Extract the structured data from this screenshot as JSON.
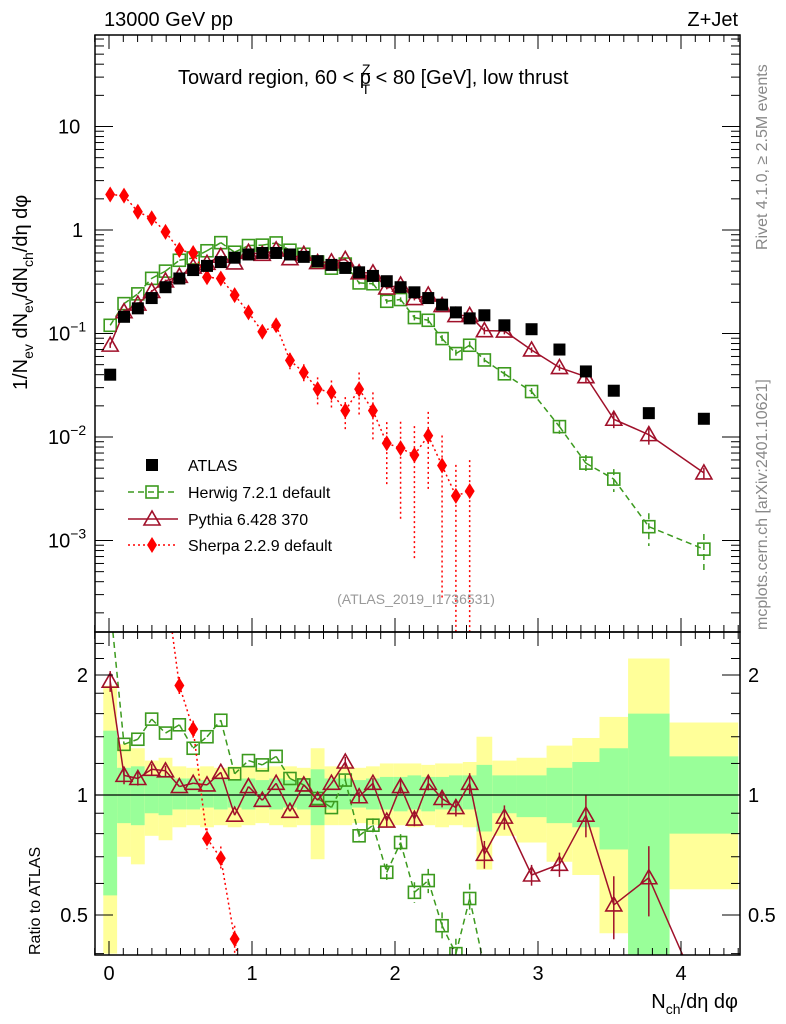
{
  "header": {
    "left": "13000 GeV pp",
    "right": "Z+Jet"
  },
  "title": {
    "pre": "Toward region, 60 < p",
    "sup": "Z",
    "sub": "T",
    "post": " < 80 [GeV], low thrust"
  },
  "ylabel": {
    "p1": "1/N",
    "s1": "ev",
    "p2": " dN",
    "s2": "ev",
    "p3": "/dN",
    "s3": "ch",
    "p4": "/dη dφ"
  },
  "xlabel": {
    "p1": "N",
    "s1": "ch",
    "p2": "/dη dφ"
  },
  "ratio_ylabel": "Ratio to ATLAS",
  "side_text": {
    "rivet": "Rivet 4.1.0, ≥ 2.5M events",
    "mcplots": "mcplots.cern.ch [arXiv:2401.10621]"
  },
  "analysis_ref": "(ATLAS_2019_I1736531)",
  "legend": [
    {
      "label": "ATLAS"
    },
    {
      "label": "Herwig 7.2.1 default"
    },
    {
      "label": "Pythia 6.428 370"
    },
    {
      "label": "Sherpa 2.2.9 default"
    }
  ],
  "colors": {
    "atlas": "#000000",
    "herwig": "#3c9a1e",
    "pythia": "#a0102a",
    "sherpa": "#ff0000",
    "band_total": "#ffff99",
    "band_stat": "#99ff99"
  },
  "x_ticks": [
    "0",
    "1",
    "2",
    "3",
    "4"
  ],
  "y_ticks_main": [
    {
      "value": 10,
      "base": "10",
      "exp": ""
    },
    {
      "value": 1,
      "base": "1",
      "exp": ""
    },
    {
      "value": 0.1,
      "base": "10",
      "exp": "−1"
    },
    {
      "value": 0.01,
      "base": "10",
      "exp": "−2"
    },
    {
      "value": 0.001,
      "base": "10",
      "exp": "−3"
    }
  ],
  "y_ticks_ratio": [
    {
      "value": 2,
      "label": "2"
    },
    {
      "value": 1,
      "label": "1"
    },
    {
      "value": 0.5,
      "label": "0.5"
    }
  ],
  "chart_data": {
    "type": "scatter",
    "log_y": true,
    "xlim": [
      -0.1,
      4.4
    ],
    "ylim": [
      0.000135,
      76
    ],
    "ratio_ylim": [
      0.4,
      2.56
    ],
    "bin_edges": [
      -0.04,
      0.0567,
      0.1534,
      0.2501,
      0.3468,
      0.4435,
      0.5402,
      0.6369,
      0.7336,
      0.8303,
      0.927,
      1.0237,
      1.1204,
      1.2171,
      1.3138,
      1.4105,
      1.5072,
      1.6039,
      1.7006,
      1.7973,
      1.894,
      1.9907,
      2.0874,
      2.1841,
      2.2808,
      2.3775,
      2.4742,
      2.57,
      2.68,
      2.85,
      3.06,
      3.24,
      3.43,
      3.63,
      3.92,
      4.4
    ],
    "atlas": {
      "name": "ATLAS",
      "values": [
        0.04,
        0.145,
        0.175,
        0.22,
        0.28,
        0.34,
        0.41,
        0.45,
        0.49,
        0.54,
        0.58,
        0.6,
        0.6,
        0.58,
        0.55,
        0.5,
        0.46,
        0.43,
        0.39,
        0.36,
        0.32,
        0.28,
        0.25,
        0.22,
        0.19,
        0.16,
        0.14,
        0.15,
        0.12,
        0.11,
        0.07,
        0.043,
        0.028,
        0.017,
        0.015
      ],
      "stat_band": [
        [
          0.56,
          1.45
        ],
        [
          0.85,
          1.17
        ],
        [
          0.84,
          1.18
        ],
        [
          0.9,
          1.12
        ],
        [
          0.89,
          1.12
        ],
        [
          0.92,
          1.1
        ],
        [
          0.92,
          1.1
        ],
        [
          0.93,
          1.09
        ],
        [
          0.92,
          1.1
        ],
        [
          0.93,
          1.09
        ],
        [
          0.92,
          1.1
        ],
        [
          0.93,
          1.09
        ],
        [
          0.92,
          1.1
        ],
        [
          0.93,
          1.09
        ],
        [
          0.92,
          1.1
        ],
        [
          0.84,
          1.16
        ],
        [
          0.92,
          1.1
        ],
        [
          0.92,
          1.1
        ],
        [
          0.93,
          1.09
        ],
        [
          0.92,
          1.1
        ],
        [
          0.92,
          1.11
        ],
        [
          0.91,
          1.11
        ],
        [
          0.92,
          1.12
        ],
        [
          0.91,
          1.11
        ],
        [
          0.92,
          1.11
        ],
        [
          0.91,
          1.12
        ],
        [
          0.92,
          1.12
        ],
        [
          0.81,
          1.19
        ],
        [
          0.9,
          1.12
        ],
        [
          0.88,
          1.12
        ],
        [
          0.85,
          1.17
        ],
        [
          0.83,
          1.21
        ],
        [
          0.73,
          1.31
        ],
        [
          0.38,
          1.6
        ],
        [
          0.8,
          1.25
        ]
      ],
      "total_band": [
        [
          0.4,
          1.88
        ],
        [
          0.7,
          1.34
        ],
        [
          0.67,
          1.31
        ],
        [
          0.79,
          1.22
        ],
        [
          0.77,
          1.24
        ],
        [
          0.83,
          1.18
        ],
        [
          0.84,
          1.17
        ],
        [
          0.83,
          1.18
        ],
        [
          0.84,
          1.17
        ],
        [
          0.83,
          1.18
        ],
        [
          0.84,
          1.18
        ],
        [
          0.85,
          1.17
        ],
        [
          0.84,
          1.18
        ],
        [
          0.83,
          1.18
        ],
        [
          0.84,
          1.17
        ],
        [
          0.69,
          1.31
        ],
        [
          0.84,
          1.18
        ],
        [
          0.84,
          1.18
        ],
        [
          0.85,
          1.17
        ],
        [
          0.84,
          1.18
        ],
        [
          0.83,
          1.2
        ],
        [
          0.84,
          1.2
        ],
        [
          0.83,
          1.2
        ],
        [
          0.84,
          1.19
        ],
        [
          0.83,
          1.2
        ],
        [
          0.84,
          1.2
        ],
        [
          0.83,
          1.21
        ],
        [
          0.65,
          1.4
        ],
        [
          0.79,
          1.22
        ],
        [
          0.76,
          1.24
        ],
        [
          0.68,
          1.33
        ],
        [
          0.63,
          1.39
        ],
        [
          0.45,
          1.57
        ],
        [
          0.3,
          2.2
        ],
        [
          0.58,
          1.52
        ]
      ]
    },
    "series": [
      {
        "name": "Herwig 7.2.1 default",
        "key": "herwig",
        "marker": "open-square",
        "line": "dashed",
        "ratio": [
          3.0,
          1.34,
          1.38,
          1.55,
          1.43,
          1.5,
          1.31,
          1.4,
          1.54,
          1.13,
          1.22,
          1.19,
          1.25,
          1.1,
          1.06,
          0.98,
          0.93,
          1.09,
          0.79,
          0.84,
          0.64,
          0.76,
          0.57,
          0.61,
          0.47,
          0.4,
          0.55,
          0.37,
          0.34,
          0.25,
          0.18,
          0.13,
          0.14,
          0.08,
          0.055
        ],
        "rel_err": [
          0.02,
          0.02,
          0.02,
          0.02,
          0.02,
          0.02,
          0.02,
          0.02,
          0.02,
          0.02,
          0.02,
          0.02,
          0.02,
          0.02,
          0.02,
          0.02,
          0.02,
          0.03,
          0.03,
          0.04,
          0.05,
          0.05,
          0.06,
          0.07,
          0.08,
          0.09,
          0.09,
          0.05,
          0.06,
          0.08,
          0.15,
          0.2,
          0.25,
          0.35,
          0.4
        ]
      },
      {
        "name": "Pythia 6.428 370",
        "key": "pythia",
        "marker": "open-triangle",
        "line": "solid",
        "ratio": [
          1.93,
          1.12,
          1.1,
          1.16,
          1.15,
          1.05,
          1.07,
          1.06,
          1.14,
          0.89,
          1.05,
          0.97,
          1.07,
          0.91,
          1.06,
          0.97,
          1.07,
          1.21,
          0.99,
          1.07,
          0.86,
          1.05,
          0.87,
          1.07,
          0.98,
          0.93,
          1.07,
          0.71,
          0.88,
          0.63,
          0.67,
          0.89,
          0.53,
          0.62,
          0.3
        ],
        "rel_err": [
          0.06,
          0.05,
          0.04,
          0.03,
          0.03,
          0.02,
          0.02,
          0.02,
          0.02,
          0.02,
          0.02,
          0.02,
          0.02,
          0.02,
          0.02,
          0.02,
          0.02,
          0.03,
          0.03,
          0.03,
          0.03,
          0.04,
          0.04,
          0.04,
          0.05,
          0.05,
          0.06,
          0.08,
          0.07,
          0.06,
          0.07,
          0.12,
          0.18,
          0.2,
          0.12
        ]
      },
      {
        "name": "Sherpa 2.2.9 default",
        "key": "sherpa",
        "marker": "filled-diamond",
        "line": "dotted",
        "values": [
          2.2,
          2.15,
          1.5,
          1.3,
          0.96,
          0.64,
          0.6,
          0.35,
          0.34,
          0.235,
          0.16,
          0.104,
          0.12,
          0.055,
          0.042,
          0.029,
          0.027,
          0.018,
          0.029,
          0.018,
          0.0087,
          0.0078,
          0.0067,
          0.0103,
          0.0053,
          0.0027,
          0.003,
          null,
          null,
          null,
          null,
          null,
          null,
          null,
          null
        ],
        "rel_err": [
          0.03,
          0.03,
          0.03,
          0.04,
          0.04,
          0.05,
          0.05,
          0.06,
          0.07,
          0.08,
          0.1,
          0.12,
          0.12,
          0.18,
          0.2,
          0.3,
          0.3,
          0.35,
          0.45,
          0.5,
          0.6,
          0.8,
          0.9,
          0.7,
          0.95,
          0.99,
          0.99,
          0,
          0,
          0,
          0,
          0,
          0,
          0,
          0
        ]
      }
    ]
  }
}
